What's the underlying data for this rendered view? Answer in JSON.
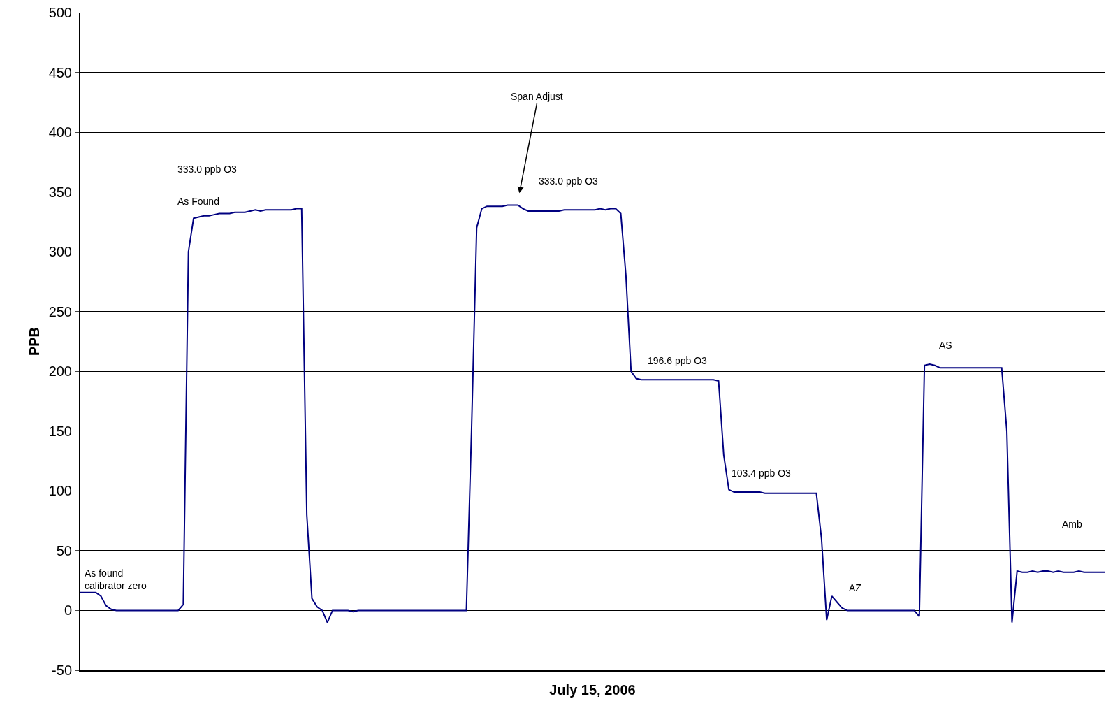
{
  "chart_data": {
    "type": "line",
    "xlabel": "July 15, 2006",
    "ylabel": "PPB",
    "categories": [
      null,
      null,
      null,
      null,
      null,
      null,
      null,
      null,
      null,
      null,
      null,
      null,
      null,
      null,
      null,
      null,
      null,
      null,
      null,
      null,
      null,
      null,
      null,
      null,
      null,
      null,
      null,
      null,
      null,
      null,
      null,
      null,
      null,
      null,
      null,
      null,
      null,
      null,
      null,
      null,
      null,
      null,
      null,
      null,
      null,
      null,
      null,
      null,
      null,
      null,
      null,
      null,
      null,
      null,
      null,
      null,
      null,
      null,
      null,
      null,
      null,
      null,
      null,
      null,
      null,
      null,
      null,
      null,
      null,
      null,
      null,
      null,
      null,
      null,
      null,
      null,
      null,
      null,
      null,
      null,
      null,
      null,
      null,
      null,
      null,
      null,
      null,
      null,
      null,
      null,
      null,
      null,
      null,
      null,
      null,
      null,
      null,
      null,
      null,
      null,
      null,
      null,
      null,
      null,
      null,
      null,
      null,
      null,
      null,
      null,
      null,
      null,
      null,
      null,
      null,
      null,
      null,
      null,
      null,
      null,
      null,
      null,
      null,
      null,
      null,
      null,
      null,
      null,
      null,
      null,
      null,
      null,
      null,
      null,
      null,
      null,
      null,
      null,
      null,
      null,
      null,
      null,
      null,
      null,
      null,
      null,
      null,
      null,
      null,
      null,
      null,
      null,
      null,
      null,
      null,
      null,
      null,
      null,
      null,
      null,
      null,
      null,
      null,
      null,
      null,
      null,
      null,
      null,
      null,
      null,
      null,
      null,
      null,
      null,
      null,
      null,
      null,
      null,
      null,
      null,
      null,
      null,
      null,
      null,
      null,
      null,
      null,
      null,
      null,
      null,
      null,
      null,
      null,
      null,
      null,
      null,
      null,
      null,
      null,
      null
    ],
    "series": [
      {
        "color": "#000080",
        "values": [
          15,
          15,
          15,
          15,
          12,
          4,
          1,
          0,
          0,
          0,
          0,
          0,
          0,
          0,
          0,
          0,
          0,
          0,
          0,
          0,
          5,
          300,
          328,
          329,
          330,
          330,
          331,
          332,
          332,
          332,
          333,
          333,
          333,
          334,
          335,
          334,
          335,
          335,
          335,
          335,
          335,
          335,
          336,
          336,
          80,
          10,
          3,
          0,
          -10,
          0,
          0,
          0,
          0,
          -1,
          0,
          0,
          0,
          0,
          0,
          0,
          0,
          0,
          0,
          0,
          0,
          0,
          0,
          0,
          0,
          0,
          0,
          0,
          0,
          0,
          0,
          0,
          150,
          320,
          336,
          338,
          338,
          338,
          338,
          339,
          339,
          339,
          336,
          334,
          334,
          334,
          334,
          334,
          334,
          334,
          335,
          335,
          335,
          335,
          335,
          335,
          335,
          336,
          335,
          336,
          336,
          332,
          280,
          200,
          194,
          193,
          193,
          193,
          193,
          193,
          193,
          193,
          193,
          193,
          193,
          193,
          193,
          193,
          193,
          193,
          192,
          130,
          101,
          99,
          99,
          99,
          99,
          99,
          99,
          98,
          98,
          98,
          98,
          98,
          98,
          98,
          98,
          98,
          98,
          98,
          60,
          -8,
          12,
          7,
          2,
          0,
          0,
          0,
          0,
          0,
          0,
          0,
          0,
          0,
          0,
          0,
          0,
          0,
          0,
          -5,
          205,
          206,
          205,
          203,
          203,
          203,
          203,
          203,
          203,
          203,
          203,
          203,
          203,
          203,
          203,
          203,
          150,
          -10,
          33,
          32,
          32,
          33,
          32,
          33,
          33,
          32,
          33,
          32,
          32,
          32,
          33,
          32,
          32,
          32,
          32,
          32
        ]
      }
    ],
    "ylim": [
      -50,
      500
    ],
    "yticks": [
      -50,
      0,
      50,
      100,
      150,
      200,
      250,
      300,
      350,
      400,
      450,
      500
    ],
    "grid": "y",
    "tick_labels": "y",
    "marker": "none",
    "line_style": "solid",
    "annotations": [
      "As found\ncalibrator zero",
      "333.0 ppb O3",
      "As Found",
      "Span Adjust",
      "333.0 ppb O3",
      "196.6 ppb O3",
      "103.4 ppb O3",
      "AZ",
      "AS",
      "Amb"
    ]
  }
}
